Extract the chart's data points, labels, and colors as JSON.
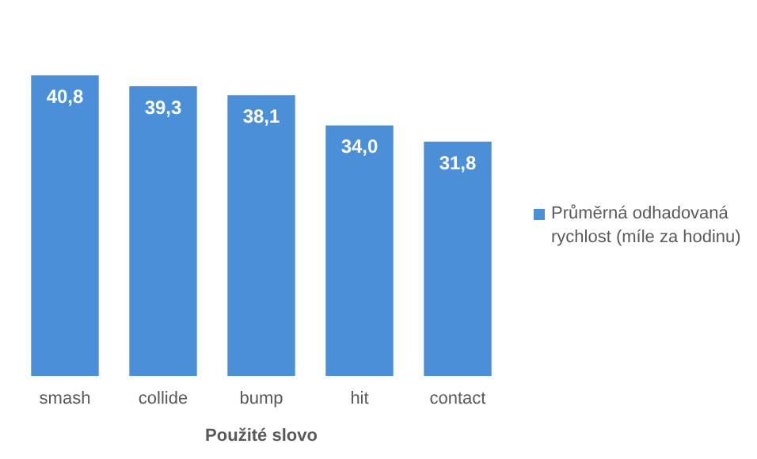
{
  "chart_data": {
    "type": "bar",
    "xlabel": "Použité slovo",
    "categories": [
      "smash",
      "collide",
      "bump",
      "hit",
      "contact"
    ],
    "series": [
      {
        "name": "Průměrná odhadovaná rychlost (míle za hodinu)",
        "color": "#4a8fd8",
        "values": [
          40.8,
          39.3,
          38.1,
          34.0,
          31.8
        ],
        "value_labels": [
          "40,8",
          "39,3",
          "38,1",
          "34,0",
          "31,8"
        ]
      }
    ],
    "grid": false,
    "legend": "right",
    "tick_labels": "x"
  }
}
